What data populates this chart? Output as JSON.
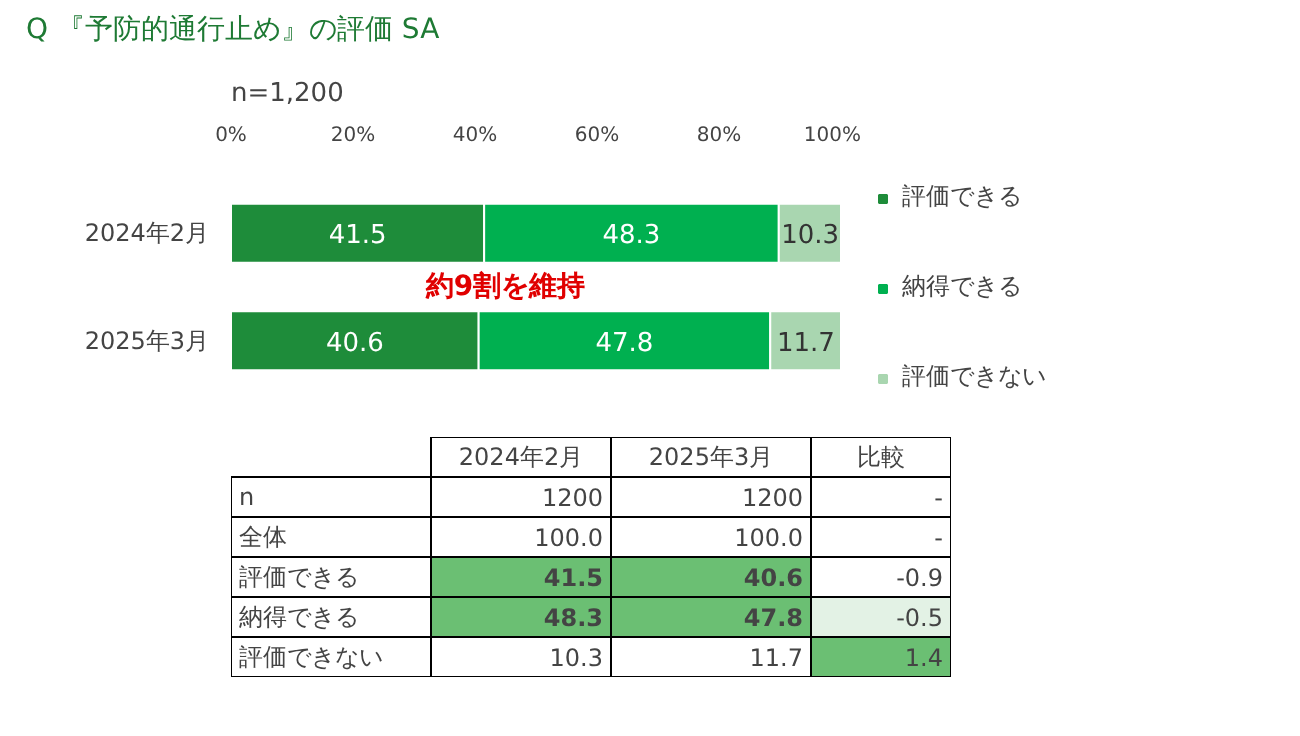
{
  "chart_data": [
    {
      "type": "bar",
      "orientation": "horizontal",
      "stacked": true,
      "title": "Q 『予防的通行止め』の評価 SA",
      "categories": [
        "2024年2月",
        "2025年3月"
      ],
      "xlim": [
        0,
        100
      ],
      "xticks": [
        {
          "value": 0,
          "label": "0%"
        },
        {
          "value": 20,
          "label": "20%"
        },
        {
          "value": 40,
          "label": "40%"
        },
        {
          "value": 60,
          "label": "60%"
        },
        {
          "value": 80,
          "label": "80%"
        },
        {
          "value": 100,
          "label": "100%"
        }
      ],
      "series": [
        {
          "name": "評価できる",
          "color": "#1e8c3a",
          "values": [
            41.5,
            40.6
          ]
        },
        {
          "name": "納得できる",
          "color": "#00b050",
          "values": [
            48.3,
            47.8
          ]
        },
        {
          "name": "評価できない",
          "color": "#a9d6b0",
          "values": [
            10.3,
            11.7
          ]
        }
      ],
      "data_labels": true,
      "legend": "right",
      "grid": false,
      "annotations": [
        "n=1,200",
        "約9割を維持"
      ]
    },
    {
      "type": "heatmap",
      "categories": [
        "2024年2月",
        "2025年3月",
        "比較"
      ],
      "y_categories": [
        "n",
        "全体",
        "評価できる",
        "納得できる",
        "評価できない"
      ],
      "cells": [
        [
          1200,
          1200,
          null
        ],
        [
          100.0,
          100.0,
          null
        ],
        [
          41.5,
          40.6,
          -0.9
        ],
        [
          48.3,
          47.8,
          -0.5
        ],
        [
          10.3,
          11.7,
          1.4
        ]
      ],
      "cell_labels": [
        [
          "1200",
          "1200",
          "-"
        ],
        [
          "100.0",
          "100.0",
          "-"
        ],
        [
          "41.5",
          "40.6",
          "-0.9"
        ],
        [
          "48.3",
          "47.8",
          "-0.5"
        ],
        [
          "10.3",
          "11.7",
          "1.4"
        ]
      ],
      "colors": [
        [
          null,
          null,
          null
        ],
        [
          null,
          null,
          null
        ],
        [
          "#6bbf73",
          "#6bbf73",
          null
        ],
        [
          "#6bbf73",
          "#6bbf73",
          "#e3f2e5"
        ],
        [
          null,
          null,
          "#6bbf73"
        ]
      ]
    }
  ]
}
